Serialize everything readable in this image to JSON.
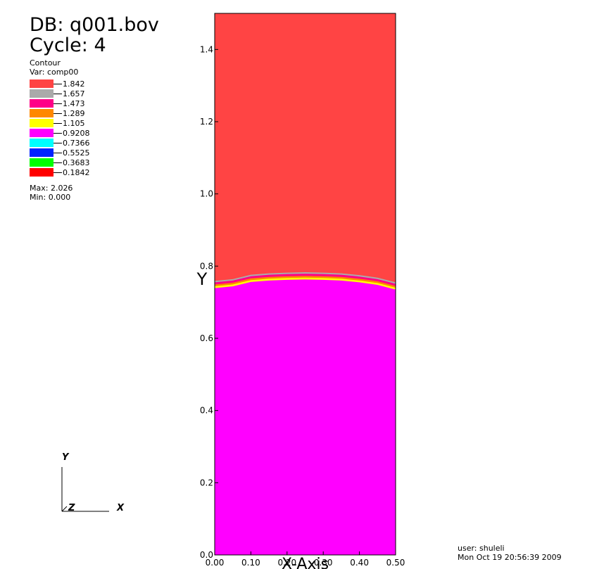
{
  "header": {
    "db_title": "DB: q001.bov",
    "cycle": "Cycle: 4",
    "plot_type": "Contour",
    "plot_var": "Var: comp00",
    "max_label": "Max: 2.026",
    "min_label": "Min: 0.000"
  },
  "legend": [
    {
      "label": "1.842",
      "color": "#ff4444"
    },
    {
      "label": "1.657",
      "color": "#aaaaaa"
    },
    {
      "label": "1.473",
      "color": "#ff0088"
    },
    {
      "label": "1.289",
      "color": "#ff8800"
    },
    {
      "label": "1.105",
      "color": "#ffff00"
    },
    {
      "label": "0.9208",
      "color": "#ff00ff"
    },
    {
      "label": "0.7366",
      "color": "#00ffff"
    },
    {
      "label": "0.5525",
      "color": "#0022ff"
    },
    {
      "label": "0.3683",
      "color": "#00ff00"
    },
    {
      "label": "0.1842",
      "color": "#ff0000"
    }
  ],
  "footer": {
    "user": "user: shuleli",
    "date": "Mon Oct 19 20:56:39 2009"
  },
  "triad": {
    "y": "Y",
    "z": "Z",
    "x": "X"
  },
  "chart_data": {
    "type": "heatmap",
    "title": "",
    "xlabel": "X-Axis",
    "ylabel": "Y",
    "xlim": [
      0,
      0.5
    ],
    "ylim": [
      0,
      1.5
    ],
    "x_ticks": [
      "0.00",
      "0.10",
      "0.20",
      "0.30",
      "0.40",
      "0.50"
    ],
    "y_ticks": [
      "0.0",
      "0.2",
      "0.4",
      "0.6",
      "0.8",
      "1.0",
      "1.2",
      "1.4"
    ],
    "regions": [
      {
        "name": "upper",
        "value": 2.026,
        "color": "#ff4444"
      },
      {
        "name": "lower",
        "value": 0.9208,
        "color": "#ff00ff"
      }
    ],
    "interface": {
      "x": [
        0.0,
        0.05,
        0.1,
        0.15,
        0.2,
        0.25,
        0.3,
        0.35,
        0.4,
        0.45,
        0.5
      ],
      "y": [
        0.755,
        0.76,
        0.772,
        0.776,
        0.778,
        0.779,
        0.778,
        0.776,
        0.771,
        0.764,
        0.751
      ]
    },
    "interface_bands": [
      {
        "color": "#aaaaaa",
        "offset": 0.0
      },
      {
        "color": "#ff0088",
        "offset": -0.006
      },
      {
        "color": "#ff8800",
        "offset": -0.011
      },
      {
        "color": "#ffff00",
        "offset": -0.016
      }
    ]
  }
}
